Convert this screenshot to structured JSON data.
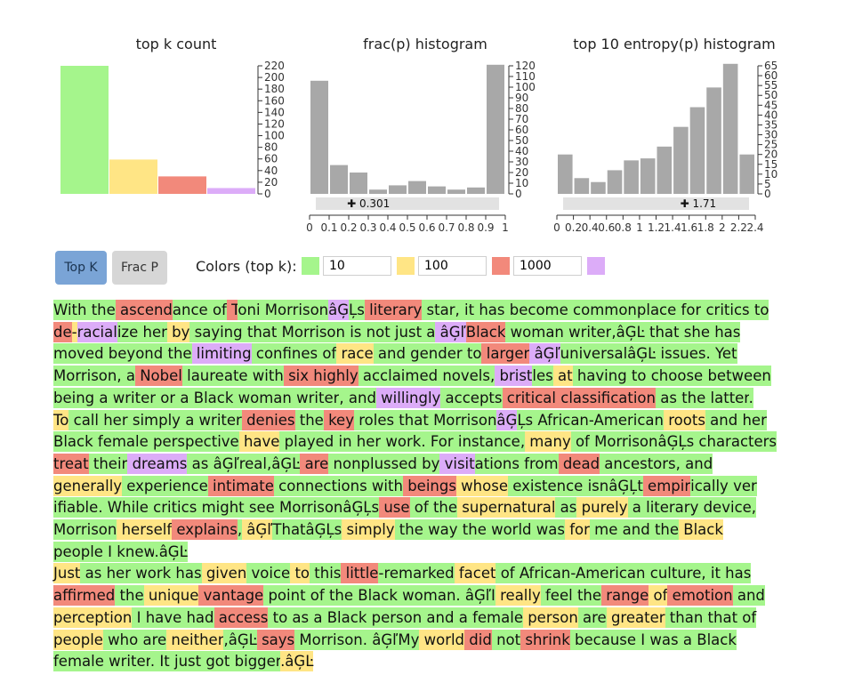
{
  "colors": {
    "top10": "#a5f58c",
    "top100": "#ffe585",
    "top1000": "#f2897b",
    "rest": "#dcacf8",
    "bar_gray": "#a8a8a8",
    "slider": "#e2e2e2",
    "btn_active": "#7aa4d6",
    "btn_inactive": "#d6d6d6"
  },
  "charts": {
    "topk": {
      "title": "top k count",
      "type": "bar",
      "categories": [
        "10",
        "100",
        "1000",
        "rest"
      ],
      "values": [
        220,
        59,
        30,
        10
      ],
      "ylim": [
        0,
        220
      ],
      "yticks": [
        0,
        20,
        40,
        60,
        80,
        100,
        120,
        140,
        160,
        180,
        200,
        220
      ]
    },
    "frac": {
      "title": "frac(p) histogram",
      "type": "bar",
      "bins": [
        0,
        0.1,
        0.2,
        0.3,
        0.4,
        0.5,
        0.6,
        0.7,
        0.8,
        0.9,
        1
      ],
      "values": [
        106,
        27,
        20,
        4,
        8,
        12,
        7,
        4,
        6,
        121
      ],
      "ylim": [
        0,
        120
      ],
      "yticks": [
        0,
        10,
        20,
        30,
        40,
        50,
        60,
        70,
        80,
        90,
        100,
        110,
        120
      ],
      "xticks": [
        "0",
        "0.1",
        "0.2",
        "0.3",
        "0.4",
        "0.5",
        "0.6",
        "0.7",
        "0.8",
        "0.9",
        "1"
      ],
      "marker_value": 0.301,
      "marker_label": "0.301"
    },
    "entropy": {
      "title": "top 10 entropy(p) histogram",
      "type": "bar",
      "bins": [
        0,
        0.2,
        0.4,
        0.6,
        0.8,
        1.0,
        1.2,
        1.4,
        1.6,
        1.8,
        2.0,
        2.2
      ],
      "values": [
        20,
        8,
        6,
        12,
        17,
        18,
        24,
        34,
        44,
        54,
        66,
        20
      ],
      "ylim": [
        0,
        65
      ],
      "yticks": [
        0,
        5,
        10,
        15,
        20,
        25,
        30,
        35,
        40,
        45,
        50,
        55,
        60,
        65
      ],
      "xticks": [
        "0",
        "0.2",
        "0.4",
        "0.6",
        "0.8",
        "1",
        "1.2",
        "1.4",
        "1.6",
        "1.8",
        "2",
        "2.2",
        "2.4"
      ],
      "marker_value": 1.71,
      "marker_label": "1.71"
    }
  },
  "controls": {
    "top_k_label": "Top K",
    "frac_p_label": "Frac P",
    "colors_label": "Colors (top k):",
    "thresholds": [
      "10",
      "100",
      "1000"
    ]
  },
  "text_tokens": [
    [
      "With",
      "g"
    ],
    [
      " the",
      "g"
    ],
    [
      " ascend",
      "r"
    ],
    [
      "ance",
      "g"
    ],
    [
      " of",
      "g"
    ],
    [
      " T",
      "r"
    ],
    [
      "oni",
      "g"
    ],
    [
      " Morrison",
      "g"
    ],
    [
      "âĢ",
      "p"
    ],
    [
      "Ļs",
      "g"
    ],
    [
      " literary",
      "r"
    ],
    [
      " star",
      "g"
    ],
    [
      ",",
      "g"
    ],
    [
      " it",
      "g"
    ],
    [
      " has",
      "g"
    ],
    [
      " become",
      "g"
    ],
    [
      " commonplace",
      "g"
    ],
    [
      " for",
      "g"
    ],
    [
      " critics",
      "g"
    ],
    [
      " to",
      "g"
    ],
    [
      "\n",
      "nl"
    ],
    [
      "de",
      "r"
    ],
    [
      "-",
      "y"
    ],
    [
      "racial",
      "p"
    ],
    [
      "ize",
      "g"
    ],
    [
      " her",
      "g"
    ],
    [
      " by",
      "y"
    ],
    [
      " saying",
      "g"
    ],
    [
      " that",
      "g"
    ],
    [
      " Morrison",
      "g"
    ],
    [
      " is",
      "g"
    ],
    [
      " not",
      "g"
    ],
    [
      " just",
      "g"
    ],
    [
      " a",
      "g"
    ],
    [
      " âĢľ",
      "p"
    ],
    [
      "Black",
      "r"
    ],
    [
      " woman",
      "g"
    ],
    [
      " writer",
      "g"
    ],
    [
      ",âĢĿ",
      "g"
    ],
    [
      " that",
      "g"
    ],
    [
      " she",
      "g"
    ],
    [
      " has",
      "g"
    ],
    [
      "\n",
      "nl"
    ],
    [
      " moved",
      "g"
    ],
    [
      " beyond",
      "g"
    ],
    [
      " the",
      "g"
    ],
    [
      " limiting",
      "p"
    ],
    [
      " confines",
      "g"
    ],
    [
      " of",
      "g"
    ],
    [
      " race",
      "y"
    ],
    [
      " and",
      "g"
    ],
    [
      " gender",
      "g"
    ],
    [
      " to",
      "g"
    ],
    [
      " larger",
      "r"
    ],
    [
      " âĢľ",
      "p"
    ],
    [
      "universal",
      "g"
    ],
    [
      "âĢĿ",
      "g"
    ],
    [
      " issues",
      "g"
    ],
    [
      ".",
      "g"
    ],
    [
      " Yet",
      "g"
    ],
    [
      "\n",
      "nl"
    ],
    [
      " Morrison",
      "g"
    ],
    [
      ",",
      "g"
    ],
    [
      " a",
      "g"
    ],
    [
      " Nobel",
      "r"
    ],
    [
      " laureate",
      "g"
    ],
    [
      " with",
      "g"
    ],
    [
      " six",
      "r"
    ],
    [
      " highly",
      "r"
    ],
    [
      " acclaimed",
      "g"
    ],
    [
      " novels",
      "g"
    ],
    [
      ",",
      "g"
    ],
    [
      " brist",
      "p"
    ],
    [
      "les",
      "g"
    ],
    [
      " at",
      "y"
    ],
    [
      " having",
      "g"
    ],
    [
      " to",
      "g"
    ],
    [
      " choose",
      "g"
    ],
    [
      " between",
      "g"
    ],
    [
      "\n",
      "nl"
    ],
    [
      " being",
      "g"
    ],
    [
      " a",
      "g"
    ],
    [
      " writer",
      "g"
    ],
    [
      " or",
      "g"
    ],
    [
      " a",
      "g"
    ],
    [
      " Black",
      "g"
    ],
    [
      " woman",
      "g"
    ],
    [
      " writer",
      "g"
    ],
    [
      ",",
      "g"
    ],
    [
      " and",
      "g"
    ],
    [
      " willingly",
      "p"
    ],
    [
      " accepts",
      "g"
    ],
    [
      " critical",
      "r"
    ],
    [
      " classification",
      "r"
    ],
    [
      " as",
      "g"
    ],
    [
      " the",
      "g"
    ],
    [
      " latter",
      "g"
    ],
    [
      ".",
      "g"
    ],
    [
      "\n",
      "nl"
    ],
    [
      "To",
      "y"
    ],
    [
      " call",
      "g"
    ],
    [
      " her",
      "g"
    ],
    [
      " simply",
      "g"
    ],
    [
      " a",
      "g"
    ],
    [
      " writer",
      "g"
    ],
    [
      " denies",
      "r"
    ],
    [
      " the",
      "g"
    ],
    [
      " key",
      "r"
    ],
    [
      " roles",
      "g"
    ],
    [
      " that",
      "g"
    ],
    [
      " Morrison",
      "g"
    ],
    [
      "âĢ",
      "p"
    ],
    [
      "Ļs",
      "g"
    ],
    [
      " African",
      "g"
    ],
    [
      "-",
      "g"
    ],
    [
      "American",
      "g"
    ],
    [
      " roots",
      "y"
    ],
    [
      " and",
      "g"
    ],
    [
      " her",
      "g"
    ],
    [
      "\n",
      "nl"
    ],
    [
      " Black",
      "g"
    ],
    [
      " female",
      "g"
    ],
    [
      " perspective",
      "g"
    ],
    [
      " have",
      "y"
    ],
    [
      " played",
      "g"
    ],
    [
      " in",
      "g"
    ],
    [
      " her",
      "g"
    ],
    [
      " work",
      "g"
    ],
    [
      ".",
      "g"
    ],
    [
      " For",
      "g"
    ],
    [
      " instance",
      "g"
    ],
    [
      ",",
      "g"
    ],
    [
      " many",
      "y"
    ],
    [
      " of",
      "g"
    ],
    [
      " Morrison",
      "g"
    ],
    [
      "âĢĻ",
      "g"
    ],
    [
      "s",
      "g"
    ],
    [
      " characters",
      "g"
    ],
    [
      "\n",
      "nl"
    ],
    [
      " treat",
      "r"
    ],
    [
      " their",
      "g"
    ],
    [
      " dreams",
      "p"
    ],
    [
      " as",
      "g"
    ],
    [
      " âĢľ",
      "g"
    ],
    [
      "real",
      "g"
    ],
    [
      ",âĢĿ",
      "g"
    ],
    [
      " are",
      "r"
    ],
    [
      " nonpl",
      "g"
    ],
    [
      "ussed",
      "g"
    ],
    [
      " by",
      "g"
    ],
    [
      " visit",
      "p"
    ],
    [
      "ations",
      "g"
    ],
    [
      " from",
      "g"
    ],
    [
      " dead",
      "r"
    ],
    [
      " ancestors",
      "g"
    ],
    [
      ",",
      "g"
    ],
    [
      " and",
      "g"
    ],
    [
      "\n",
      "nl"
    ],
    [
      " generally",
      "y"
    ],
    [
      " experience",
      "g"
    ],
    [
      " intimate",
      "r"
    ],
    [
      " connections",
      "g"
    ],
    [
      " with",
      "g"
    ],
    [
      " beings",
      "r"
    ],
    [
      " whose",
      "y"
    ],
    [
      " existence",
      "g"
    ],
    [
      " isn",
      "g"
    ],
    [
      "âĢĻ",
      "g"
    ],
    [
      "t",
      "g"
    ],
    [
      " empir",
      "r"
    ],
    [
      "ically",
      "g"
    ],
    [
      " ver",
      "g"
    ],
    [
      "\n",
      "nl"
    ],
    [
      "ifiable",
      "g"
    ],
    [
      ".",
      "g"
    ],
    [
      " While",
      "g"
    ],
    [
      " critics",
      "g"
    ],
    [
      " might",
      "g"
    ],
    [
      " see",
      "g"
    ],
    [
      " Morrison",
      "g"
    ],
    [
      "âĢĻ",
      "g"
    ],
    [
      "s",
      "g"
    ],
    [
      " use",
      "r"
    ],
    [
      " of",
      "g"
    ],
    [
      " the",
      "g"
    ],
    [
      " supernatural",
      "y"
    ],
    [
      " as",
      "g"
    ],
    [
      " purely",
      "y"
    ],
    [
      " a",
      "g"
    ],
    [
      " literary",
      "g"
    ],
    [
      " device",
      "g"
    ],
    [
      ",",
      "g"
    ],
    [
      "\n",
      "nl"
    ],
    [
      " Morrison",
      "g"
    ],
    [
      " herself",
      "y"
    ],
    [
      " explains",
      "r"
    ],
    [
      ",",
      "g"
    ],
    [
      " âĢľ",
      "y"
    ],
    [
      "That",
      "g"
    ],
    [
      "âĢĻ",
      "g"
    ],
    [
      "s",
      "g"
    ],
    [
      " simply",
      "y"
    ],
    [
      " the",
      "g"
    ],
    [
      " way",
      "g"
    ],
    [
      " the",
      "g"
    ],
    [
      " world",
      "g"
    ],
    [
      " was",
      "g"
    ],
    [
      " for",
      "y"
    ],
    [
      " me",
      "g"
    ],
    [
      " and",
      "g"
    ],
    [
      " the",
      "g"
    ],
    [
      " Black",
      "y"
    ],
    [
      "\n",
      "nl"
    ],
    [
      " people",
      "g"
    ],
    [
      " I",
      "g"
    ],
    [
      " knew",
      "g"
    ],
    [
      ".âĢĿ",
      "g"
    ],
    [
      "\n",
      "nl"
    ],
    [
      "Just",
      "y"
    ],
    [
      " as",
      "g"
    ],
    [
      " her",
      "g"
    ],
    [
      " work",
      "g"
    ],
    [
      " has",
      "g"
    ],
    [
      " given",
      "y"
    ],
    [
      " voice",
      "g"
    ],
    [
      " to",
      "y"
    ],
    [
      " this",
      "g"
    ],
    [
      " little",
      "r"
    ],
    [
      "-",
      "g"
    ],
    [
      "rem",
      "g"
    ],
    [
      "arked",
      "g"
    ],
    [
      " facet",
      "y"
    ],
    [
      " of",
      "g"
    ],
    [
      " African",
      "g"
    ],
    [
      "-",
      "g"
    ],
    [
      "American",
      "g"
    ],
    [
      " culture",
      "g"
    ],
    [
      ",",
      "g"
    ],
    [
      " it",
      "g"
    ],
    [
      " has",
      "g"
    ],
    [
      "\n",
      "nl"
    ],
    [
      " affirmed",
      "r"
    ],
    [
      " the",
      "g"
    ],
    [
      " unique",
      "y"
    ],
    [
      " vantage",
      "r"
    ],
    [
      " point",
      "g"
    ],
    [
      " of",
      "g"
    ],
    [
      " the",
      "g"
    ],
    [
      " Black",
      "g"
    ],
    [
      " woman",
      "g"
    ],
    [
      ".",
      "g"
    ],
    [
      " âĢľ",
      "g"
    ],
    [
      "I",
      "g"
    ],
    [
      " really",
      "y"
    ],
    [
      " feel",
      "g"
    ],
    [
      " the",
      "g"
    ],
    [
      " range",
      "r"
    ],
    [
      " of",
      "y"
    ],
    [
      " emotion",
      "r"
    ],
    [
      " and",
      "g"
    ],
    [
      "\n",
      "nl"
    ],
    [
      " perception",
      "y"
    ],
    [
      " I",
      "g"
    ],
    [
      " have",
      "g"
    ],
    [
      " had",
      "g"
    ],
    [
      " access",
      "r"
    ],
    [
      " to",
      "g"
    ],
    [
      " as",
      "g"
    ],
    [
      " a",
      "g"
    ],
    [
      " Black",
      "g"
    ],
    [
      " person",
      "g"
    ],
    [
      " and",
      "g"
    ],
    [
      " a",
      "g"
    ],
    [
      " female",
      "g"
    ],
    [
      " person",
      "y"
    ],
    [
      " are",
      "g"
    ],
    [
      " greater",
      "y"
    ],
    [
      " than",
      "g"
    ],
    [
      " that",
      "g"
    ],
    [
      " of",
      "g"
    ],
    [
      "\n",
      "nl"
    ],
    [
      " people",
      "y"
    ],
    [
      " who",
      "g"
    ],
    [
      " are",
      "g"
    ],
    [
      " neither",
      "y"
    ],
    [
      ",âĢĿ",
      "g"
    ],
    [
      " says",
      "r"
    ],
    [
      " Morrison",
      "g"
    ],
    [
      ".",
      "g"
    ],
    [
      " âĢľ",
      "g"
    ],
    [
      "My",
      "g"
    ],
    [
      " world",
      "y"
    ],
    [
      " did",
      "r"
    ],
    [
      " not",
      "g"
    ],
    [
      " shrink",
      "r"
    ],
    [
      " because",
      "g"
    ],
    [
      " I",
      "g"
    ],
    [
      " was",
      "g"
    ],
    [
      " a",
      "g"
    ],
    [
      " Black",
      "g"
    ],
    [
      "\n",
      "nl"
    ],
    [
      " female",
      "g"
    ],
    [
      " writer",
      "g"
    ],
    [
      ".",
      "g"
    ],
    [
      " It",
      "g"
    ],
    [
      " just",
      "g"
    ],
    [
      " got",
      "g"
    ],
    [
      " bigger",
      "g"
    ],
    [
      ".âĢĿ",
      "y"
    ]
  ]
}
